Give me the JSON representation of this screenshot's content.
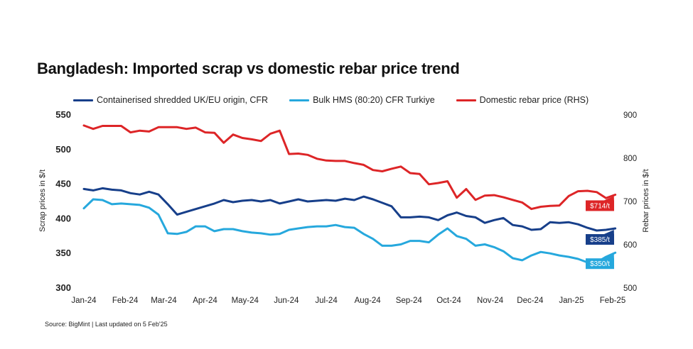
{
  "title": "Bangladesh: Imported scrap vs domestic rebar price trend",
  "legend": [
    {
      "label": "Containerised shredded UK/EU origin, CFR",
      "color": "#173f8a"
    },
    {
      "label": "Bulk HMS (80:20) CFR Turkiye",
      "color": "#26a8dd"
    },
    {
      "label": "Domestic rebar price (RHS)",
      "color": "#dd2527"
    }
  ],
  "source": "Source: BigMint | Last updated on 5 Feb'25",
  "chart_data": {
    "type": "line",
    "title": "Bangladesh: Imported scrap vs domestic rebar price trend",
    "ylabel": "Scrap prices in $/t",
    "y2label": "Rebar prices in $/t",
    "ylim": [
      300,
      550
    ],
    "y2lim": [
      500,
      900
    ],
    "yticks": [
      "550",
      "500",
      "450",
      "400",
      "350",
      "300"
    ],
    "y2ticks": [
      "900",
      "800",
      "700",
      "600",
      "500"
    ],
    "xticks": [
      "Jan-24",
      "Feb-24",
      "Mar-24",
      "Apr-24",
      "May-24",
      "Jun-24",
      "Jul-24",
      "Aug-24",
      "Sep-24",
      "Oct-24",
      "Nov-24",
      "Dec-24",
      "Jan-25",
      "Feb-25"
    ],
    "xrange": [
      "2024-01-01",
      "2025-02-01"
    ],
    "grid": false,
    "legend_position": "top",
    "series": [
      {
        "name": "Containerised shredded UK/EU origin, CFR",
        "color": "#173f8a",
        "axis": "left",
        "end_label": "$385/t",
        "points": [
          [
            "2024-01-01",
            442
          ],
          [
            "2024-01-08",
            440
          ],
          [
            "2024-01-15",
            443
          ],
          [
            "2024-01-22",
            441
          ],
          [
            "2024-01-29",
            440
          ],
          [
            "2024-02-05",
            436
          ],
          [
            "2024-02-12",
            434
          ],
          [
            "2024-02-19",
            438
          ],
          [
            "2024-02-26",
            434
          ],
          [
            "2024-03-04",
            420
          ],
          [
            "2024-03-11",
            405
          ],
          [
            "2024-03-18",
            409
          ],
          [
            "2024-03-25",
            413
          ],
          [
            "2024-04-01",
            417
          ],
          [
            "2024-04-08",
            421
          ],
          [
            "2024-04-15",
            426
          ],
          [
            "2024-04-22",
            423
          ],
          [
            "2024-04-29",
            425
          ],
          [
            "2024-05-06",
            426
          ],
          [
            "2024-05-13",
            424
          ],
          [
            "2024-05-20",
            426
          ],
          [
            "2024-05-27",
            421
          ],
          [
            "2024-06-03",
            424
          ],
          [
            "2024-06-10",
            427
          ],
          [
            "2024-06-17",
            424
          ],
          [
            "2024-06-24",
            425
          ],
          [
            "2024-07-01",
            426
          ],
          [
            "2024-07-08",
            425
          ],
          [
            "2024-07-15",
            428
          ],
          [
            "2024-07-22",
            426
          ],
          [
            "2024-07-29",
            431
          ],
          [
            "2024-08-05",
            427
          ],
          [
            "2024-08-12",
            422
          ],
          [
            "2024-08-19",
            417
          ],
          [
            "2024-08-26",
            401
          ],
          [
            "2024-09-02",
            401
          ],
          [
            "2024-09-09",
            402
          ],
          [
            "2024-09-16",
            401
          ],
          [
            "2024-09-23",
            397
          ],
          [
            "2024-09-30",
            404
          ],
          [
            "2024-10-07",
            408
          ],
          [
            "2024-10-14",
            403
          ],
          [
            "2024-10-21",
            401
          ],
          [
            "2024-10-28",
            393
          ],
          [
            "2024-11-04",
            397
          ],
          [
            "2024-11-11",
            400
          ],
          [
            "2024-11-18",
            390
          ],
          [
            "2024-11-25",
            388
          ],
          [
            "2024-12-02",
            383
          ],
          [
            "2024-12-09",
            384
          ],
          [
            "2024-12-16",
            394
          ],
          [
            "2024-12-23",
            393
          ],
          [
            "2024-12-30",
            394
          ],
          [
            "2025-01-06",
            391
          ],
          [
            "2025-01-13",
            386
          ],
          [
            "2025-01-20",
            382
          ],
          [
            "2025-01-27",
            383
          ],
          [
            "2025-02-03",
            385
          ]
        ]
      },
      {
        "name": "Bulk HMS (80:20) CFR Turkiye",
        "color": "#26a8dd",
        "axis": "left",
        "end_label": "$350/t",
        "points": [
          [
            "2024-01-01",
            414
          ],
          [
            "2024-01-08",
            427
          ],
          [
            "2024-01-15",
            426
          ],
          [
            "2024-01-22",
            420
          ],
          [
            "2024-01-29",
            421
          ],
          [
            "2024-02-05",
            420
          ],
          [
            "2024-02-12",
            419
          ],
          [
            "2024-02-19",
            415
          ],
          [
            "2024-02-26",
            405
          ],
          [
            "2024-03-04",
            378
          ],
          [
            "2024-03-11",
            377
          ],
          [
            "2024-03-18",
            380
          ],
          [
            "2024-03-25",
            388
          ],
          [
            "2024-04-01",
            388
          ],
          [
            "2024-04-08",
            381
          ],
          [
            "2024-04-15",
            384
          ],
          [
            "2024-04-22",
            384
          ],
          [
            "2024-04-29",
            381
          ],
          [
            "2024-05-06",
            379
          ],
          [
            "2024-05-13",
            378
          ],
          [
            "2024-05-20",
            376
          ],
          [
            "2024-05-27",
            377
          ],
          [
            "2024-06-03",
            383
          ],
          [
            "2024-06-10",
            385
          ],
          [
            "2024-06-17",
            387
          ],
          [
            "2024-06-24",
            388
          ],
          [
            "2024-07-01",
            388
          ],
          [
            "2024-07-08",
            390
          ],
          [
            "2024-07-15",
            387
          ],
          [
            "2024-07-22",
            386
          ],
          [
            "2024-07-29",
            377
          ],
          [
            "2024-08-05",
            370
          ],
          [
            "2024-08-12",
            360
          ],
          [
            "2024-08-19",
            360
          ],
          [
            "2024-08-26",
            362
          ],
          [
            "2024-09-02",
            367
          ],
          [
            "2024-09-09",
            367
          ],
          [
            "2024-09-16",
            365
          ],
          [
            "2024-09-23",
            376
          ],
          [
            "2024-09-30",
            385
          ],
          [
            "2024-10-07",
            374
          ],
          [
            "2024-10-14",
            370
          ],
          [
            "2024-10-21",
            360
          ],
          [
            "2024-10-28",
            362
          ],
          [
            "2024-11-04",
            358
          ],
          [
            "2024-11-11",
            352
          ],
          [
            "2024-11-18",
            342
          ],
          [
            "2024-11-25",
            339
          ],
          [
            "2024-12-02",
            346
          ],
          [
            "2024-12-09",
            351
          ],
          [
            "2024-12-16",
            349
          ],
          [
            "2024-12-23",
            346
          ],
          [
            "2024-12-30",
            344
          ],
          [
            "2025-01-06",
            341
          ],
          [
            "2025-01-13",
            336
          ],
          [
            "2025-01-20",
            336
          ],
          [
            "2025-01-27",
            344
          ],
          [
            "2025-02-03",
            350
          ]
        ]
      },
      {
        "name": "Domestic rebar price (RHS)",
        "color": "#dd2527",
        "axis": "right",
        "end_label": "$714/t",
        "points": [
          [
            "2024-01-01",
            874
          ],
          [
            "2024-01-08",
            866
          ],
          [
            "2024-01-15",
            873
          ],
          [
            "2024-01-22",
            873
          ],
          [
            "2024-01-29",
            873
          ],
          [
            "2024-02-05",
            858
          ],
          [
            "2024-02-12",
            862
          ],
          [
            "2024-02-19",
            860
          ],
          [
            "2024-02-26",
            870
          ],
          [
            "2024-03-04",
            870
          ],
          [
            "2024-03-11",
            870
          ],
          [
            "2024-03-18",
            866
          ],
          [
            "2024-03-25",
            869
          ],
          [
            "2024-04-01",
            858
          ],
          [
            "2024-04-08",
            857
          ],
          [
            "2024-04-15",
            834
          ],
          [
            "2024-04-22",
            853
          ],
          [
            "2024-04-29",
            845
          ],
          [
            "2024-05-06",
            842
          ],
          [
            "2024-05-13",
            838
          ],
          [
            "2024-05-20",
            855
          ],
          [
            "2024-05-27",
            862
          ],
          [
            "2024-06-03",
            808
          ],
          [
            "2024-06-10",
            809
          ],
          [
            "2024-06-17",
            806
          ],
          [
            "2024-06-24",
            797
          ],
          [
            "2024-07-01",
            793
          ],
          [
            "2024-07-08",
            792
          ],
          [
            "2024-07-15",
            792
          ],
          [
            "2024-07-22",
            787
          ],
          [
            "2024-07-29",
            783
          ],
          [
            "2024-08-05",
            771
          ],
          [
            "2024-08-12",
            768
          ],
          [
            "2024-08-19",
            774
          ],
          [
            "2024-08-26",
            779
          ],
          [
            "2024-09-02",
            764
          ],
          [
            "2024-09-09",
            762
          ],
          [
            "2024-09-16",
            738
          ],
          [
            "2024-09-23",
            741
          ],
          [
            "2024-09-30",
            745
          ],
          [
            "2024-10-07",
            707
          ],
          [
            "2024-10-14",
            727
          ],
          [
            "2024-10-21",
            702
          ],
          [
            "2024-10-28",
            712
          ],
          [
            "2024-11-04",
            713
          ],
          [
            "2024-11-11",
            708
          ],
          [
            "2024-11-18",
            702
          ],
          [
            "2024-11-25",
            696
          ],
          [
            "2024-12-02",
            681
          ],
          [
            "2024-12-09",
            686
          ],
          [
            "2024-12-16",
            688
          ],
          [
            "2024-12-23",
            689
          ],
          [
            "2024-12-30",
            711
          ],
          [
            "2025-01-06",
            722
          ],
          [
            "2025-01-13",
            723
          ],
          [
            "2025-01-20",
            720
          ],
          [
            "2025-01-27",
            706
          ],
          [
            "2025-02-03",
            714
          ]
        ]
      }
    ]
  }
}
